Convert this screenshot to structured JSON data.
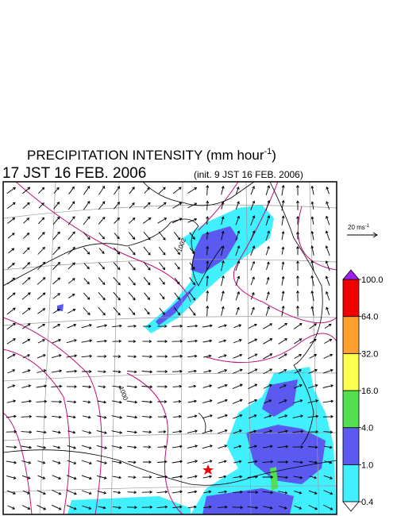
{
  "title": {
    "text": "PRECIPITATION INTENSITY (mm hour",
    "exponent": "-1",
    "close": ")"
  },
  "valid_time": "17 JST 16 FEB. 2006",
  "init_time": "(init. 9 JST 16 FEB. 2006)",
  "wind_reference": {
    "text": "20 ms",
    "exponent": "-1"
  },
  "contour_labels": [
    "1002",
    "1000"
  ],
  "colorbar": {
    "levels": [
      {
        "value": 0.4,
        "label": "0.4"
      },
      {
        "value": 1,
        "label": "1.0"
      },
      {
        "value": 4,
        "label": "4.0"
      },
      {
        "value": 16,
        "label": "16.0"
      },
      {
        "value": 32,
        "label": "32.0"
      },
      {
        "value": 64,
        "label": "64.0"
      },
      {
        "value": 100,
        "label": "100.0"
      }
    ],
    "colors": [
      "#40f0ff",
      "#5a5af0",
      "#50e050",
      "#ffff50",
      "#ffa030",
      "#f00000"
    ],
    "under_color": "#ffffff",
    "over_color": "#a020f0"
  }
}
